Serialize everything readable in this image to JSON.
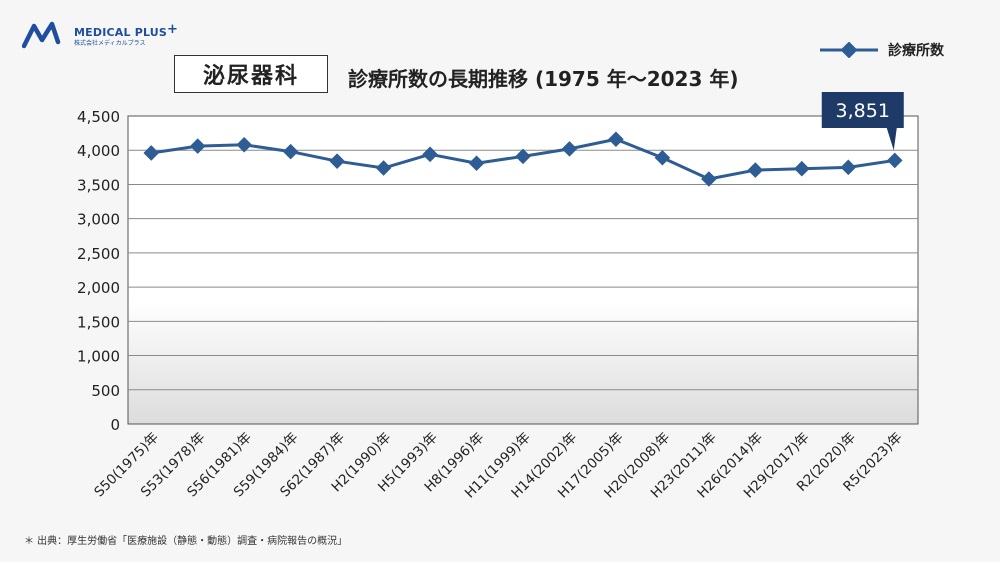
{
  "logo": {
    "name": "MEDICAL PLUS",
    "plus": "+",
    "sub": "株式会社メディカルプラス"
  },
  "dept_label": "泌尿器科",
  "chart_data": {
    "type": "line",
    "title": "診療所数の長期推移 (1975 年～2023 年)",
    "categories": [
      "S50(1975)年",
      "S53(1978)年",
      "S56(1981)年",
      "S59(1984)年",
      "S62(1987)年",
      "H2(1990)年",
      "H5(1993)年",
      "H8(1996)年",
      "H11(1999)年",
      "H14(2002)年",
      "H17(2005)年",
      "H20(2008)年",
      "H23(2011)年",
      "H26(2014)年",
      "H29(2017)年",
      "R2(2020)年",
      "R5(2023)年"
    ],
    "series": [
      {
        "name": "診療所数",
        "color": "#2e5c94",
        "values": [
          3960,
          4060,
          4080,
          3980,
          3840,
          3740,
          3940,
          3810,
          3910,
          4020,
          4160,
          3890,
          3580,
          3710,
          3730,
          3750,
          3851
        ]
      }
    ],
    "ylim": [
      0,
      4500
    ],
    "yticks": [
      0,
      500,
      1000,
      1500,
      2000,
      2500,
      3000,
      3500,
      4000,
      4500
    ],
    "ytick_labels": [
      "0",
      "500",
      "1,000",
      "1,500",
      "2,000",
      "2,500",
      "3,000",
      "3,500",
      "4,000",
      "4,500"
    ],
    "callout": {
      "label": "3,851",
      "color": "#1e3a66"
    },
    "legend_position": "top-right",
    "grid": true
  },
  "source_note": "＊ 出典：厚生労働省「医療施設（静態・動態）調査・病院報告の概況」"
}
